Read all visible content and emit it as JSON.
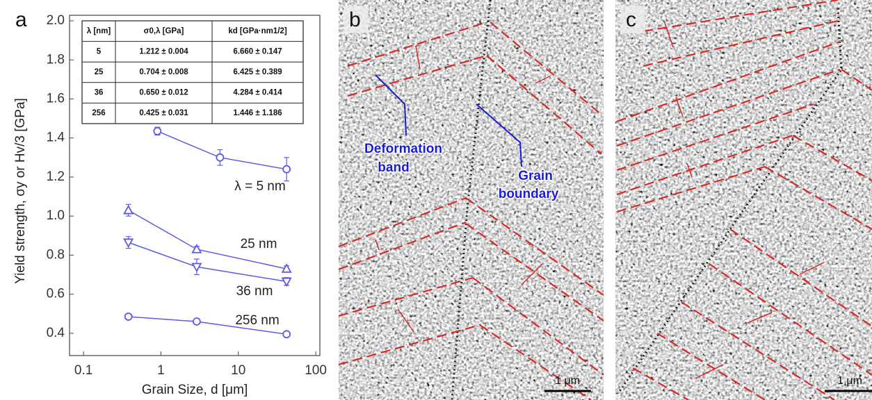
{
  "panel_labels": [
    "a",
    "b",
    "c"
  ],
  "chart_data": {
    "type": "line",
    "xlabel": "Grain Size, d  [μm]",
    "ylabel": "Yield strength, σy or Hv/3  [GPa]",
    "xscale": "log",
    "xlim": [
      0.066,
      113
    ],
    "ylim": [
      0.3,
      2.0
    ],
    "xticks": [
      0.1,
      1,
      10,
      100
    ],
    "yticks": [
      0.4,
      0.6,
      0.8,
      {
        "value": 1,
        "label": "1.0"
      },
      1.2,
      1.4,
      1.6,
      1.8,
      {
        "value": 2,
        "label": "2.0"
      }
    ],
    "series": [
      {
        "name": "λ = 5 nm",
        "color": "#5a5ae6",
        "marker": "circle",
        "x": [
          0.9,
          5.8,
          42
        ],
        "values": [
          1.435,
          1.3,
          1.24
        ],
        "errors": [
          0.02,
          0.04,
          0.06
        ]
      },
      {
        "name": "25 nm",
        "color": "#5a5ae6",
        "marker": "triangle-up",
        "x": [
          0.38,
          2.9,
          42
        ],
        "values": [
          1.03,
          0.83,
          0.73
        ],
        "errors": [
          0.03,
          0.015,
          0.015
        ]
      },
      {
        "name": "36 nm",
        "color": "#5a5ae6",
        "marker": "triangle-down",
        "x": [
          0.38,
          2.9,
          42
        ],
        "values": [
          0.865,
          0.74,
          0.665
        ],
        "errors": [
          0.03,
          0.04,
          0.02
        ]
      },
      {
        "name": "256 nm",
        "color": "#5a5ae6",
        "marker": "circle",
        "x": [
          0.38,
          2.9,
          42
        ],
        "values": [
          0.485,
          0.46,
          0.395
        ],
        "errors": [
          0.01,
          0.01,
          0.01
        ]
      }
    ]
  },
  "table": {
    "header": [
      "λ [nm]",
      "σ0,λ [GPa]",
      "kd [GPa·nm1/2]"
    ],
    "rows": [
      [
        "5",
        "1.212 ± 0.004",
        "6.660 ± 0.147"
      ],
      [
        "25",
        "0.704 ± 0.008",
        "6.425 ± 0.389"
      ],
      [
        "36",
        "0.650 ± 0.012",
        "4.284 ± 0.414"
      ],
      [
        "256",
        "0.425 ± 0.031",
        "1.446 ± 1.186"
      ]
    ]
  },
  "micrographs": {
    "deformation_band": [
      "Deformation",
      "band"
    ],
    "grain_boundary": [
      "Grain",
      "boundary"
    ],
    "scale_bar": "1 μm"
  }
}
